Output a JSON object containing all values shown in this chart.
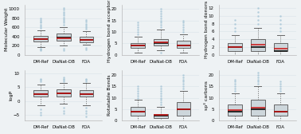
{
  "subplots": [
    {
      "ylabel": "Molecular Weight",
      "groups": [
        "DM-Ref",
        "DiaNat-DB",
        "FDA"
      ],
      "boxes": [
        {
          "whislo": 175,
          "q1": 285,
          "med": 340,
          "mean": 335,
          "q3": 405,
          "whishi": 530,
          "fliers_high": [
            580,
            620,
            660,
            700,
            730,
            760,
            800
          ],
          "fliers_low": [
            90,
            110,
            140
          ]
        },
        {
          "whislo": 195,
          "q1": 305,
          "med": 370,
          "mean": 362,
          "q3": 460,
          "whishi": 610,
          "fliers_high": [
            660,
            700,
            740,
            780,
            820,
            860,
            900,
            940,
            980,
            1020
          ],
          "fliers_low": [
            95,
            125
          ]
        },
        {
          "whislo": 215,
          "q1": 275,
          "med": 330,
          "mean": 325,
          "q3": 390,
          "whishi": 510,
          "fliers_high": [
            560,
            600,
            640,
            680,
            720,
            760
          ],
          "fliers_low": [
            115,
            145
          ]
        }
      ],
      "ylim": [
        0,
        1100
      ],
      "yticks": [
        0,
        200,
        400,
        600,
        800,
        1000
      ]
    },
    {
      "ylabel": "Hydrogen bond acceptors",
      "groups": [
        "DM-Ref",
        "DiaNat-DB",
        "FDA"
      ],
      "boxes": [
        {
          "whislo": 1,
          "q1": 3,
          "med": 4,
          "mean": 4.2,
          "q3": 5,
          "whishi": 8,
          "fliers_high": [
            9,
            10,
            11,
            12,
            13,
            14
          ],
          "fliers_low": []
        },
        {
          "whislo": 2,
          "q1": 4,
          "med": 5,
          "mean": 5.5,
          "q3": 7,
          "whishi": 11,
          "fliers_high": [
            12,
            13,
            14,
            15,
            16,
            17,
            18,
            19,
            20
          ],
          "fliers_low": [
            1
          ]
        },
        {
          "whislo": 1,
          "q1": 3,
          "med": 4,
          "mean": 4.0,
          "q3": 6,
          "whishi": 9,
          "fliers_high": [
            10,
            11,
            12,
            13,
            14,
            15
          ],
          "fliers_low": []
        }
      ],
      "ylim": [
        0,
        22
      ],
      "yticks": [
        0,
        5,
        10,
        15,
        20
      ]
    },
    {
      "ylabel": "Hydrogen bond donors",
      "groups": [
        "DM-Ref",
        "DiaNat-DB",
        "FDA"
      ],
      "boxes": [
        {
          "whislo": 0,
          "q1": 1,
          "med": 2,
          "mean": 2.0,
          "q3": 3,
          "whishi": 5,
          "fliers_high": [
            6,
            7,
            8,
            9
          ],
          "fliers_low": []
        },
        {
          "whislo": 0,
          "q1": 1,
          "med": 2,
          "mean": 2.5,
          "q3": 4,
          "whishi": 7,
          "fliers_high": [
            8,
            9,
            10,
            11,
            12
          ],
          "fliers_low": []
        },
        {
          "whislo": 0,
          "q1": 1,
          "med": 1,
          "mean": 1.5,
          "q3": 3,
          "whishi": 5,
          "fliers_high": [
            6,
            7,
            8,
            9,
            10
          ],
          "fliers_low": []
        }
      ],
      "ylim": [
        0,
        13
      ],
      "yticks": [
        0,
        2,
        4,
        6,
        8,
        10,
        12
      ]
    },
    {
      "ylabel": "logP",
      "groups": [
        "DM-Ref",
        "DiaNat-DB",
        "FDA"
      ],
      "boxes": [
        {
          "whislo": -1.5,
          "q1": 1.5,
          "med": 2.5,
          "mean": 2.4,
          "q3": 3.8,
          "whishi": 6.0,
          "fliers_high": [
            7.0,
            7.5,
            8.0
          ],
          "fliers_low": [
            -3.0,
            -4.0,
            -5.0
          ]
        },
        {
          "whislo": -1.0,
          "q1": 1.5,
          "med": 2.8,
          "mean": 2.7,
          "q3": 4.2,
          "whishi": 6.5,
          "fliers_high": [
            7.0,
            7.5,
            8.0,
            8.5
          ],
          "fliers_low": [
            -2.5,
            -3.5,
            -4.5
          ]
        },
        {
          "whislo": -1.5,
          "q1": 1.5,
          "med": 2.5,
          "mean": 2.4,
          "q3": 4.0,
          "whishi": 6.5,
          "fliers_high": [
            7.0,
            7.5,
            8.0
          ],
          "fliers_low": [
            -2.5,
            -3.5,
            -4.5,
            -5.5
          ]
        }
      ],
      "ylim": [
        -7,
        11
      ],
      "yticks": [
        -5,
        0,
        5,
        10
      ]
    },
    {
      "ylabel": "Rotatable Bonds",
      "groups": [
        "DM-Ref",
        "DiaNat-DB",
        "FDA"
      ],
      "boxes": [
        {
          "whislo": 0,
          "q1": 2,
          "med": 4,
          "mean": 4.0,
          "q3": 6,
          "whishi": 9,
          "fliers_high": [
            10,
            11,
            12,
            13,
            14,
            15
          ],
          "fliers_low": []
        },
        {
          "whislo": 0,
          "q1": 1,
          "med": 2,
          "mean": 2.5,
          "q3": 3,
          "whishi": 6,
          "fliers_high": [
            7,
            8,
            9,
            10,
            11,
            12,
            13,
            14,
            15
          ],
          "fliers_low": []
        },
        {
          "whislo": 0,
          "q1": 2,
          "med": 5,
          "mean": 5.0,
          "q3": 8,
          "whishi": 13,
          "fliers_high": [
            14,
            15,
            16,
            17,
            18,
            19,
            20
          ],
          "fliers_low": []
        }
      ],
      "ylim": [
        0,
        22
      ],
      "yticks": [
        0,
        5,
        10,
        15,
        20
      ]
    },
    {
      "ylabel": "sp³ carbons",
      "groups": [
        "DM-Ref",
        "DiaNat-DB",
        "FDA"
      ],
      "boxes": [
        {
          "whislo": 0,
          "q1": 2,
          "med": 4,
          "mean": 4.5,
          "q3": 7,
          "whishi": 12,
          "fliers_high": [
            13,
            14,
            15,
            16,
            17,
            18
          ],
          "fliers_low": []
        },
        {
          "whislo": 0,
          "q1": 2,
          "med": 5,
          "mean": 5.5,
          "q3": 9,
          "whishi": 15,
          "fliers_high": [
            16,
            17,
            18,
            19,
            20,
            21
          ],
          "fliers_low": []
        },
        {
          "whislo": 0,
          "q1": 2,
          "med": 4,
          "mean": 4.0,
          "q3": 7,
          "whishi": 12,
          "fliers_high": [
            13,
            14,
            15,
            16,
            17
          ],
          "fliers_low": []
        }
      ],
      "ylim": [
        0,
        22
      ],
      "yticks": [
        0,
        5,
        10,
        15,
        20
      ]
    }
  ],
  "box_facecolor": "#cdd6db",
  "box_edgecolor": "#666666",
  "median_color": "#1a1a1a",
  "mean_color": "#cc1111",
  "flier_color": "#aac8d8",
  "whisker_color": "#666666",
  "cap_color": "#666666",
  "grid_color": "#dde6ea",
  "bg_color": "#eef2f4",
  "plot_bg": "#eef2f4",
  "box_width": 0.62,
  "linewidth": 0.7,
  "median_lw": 1.3,
  "mean_lw": 1.1,
  "tick_fontsize": 4.0,
  "label_fontsize": 4.5,
  "flier_size": 0.9
}
